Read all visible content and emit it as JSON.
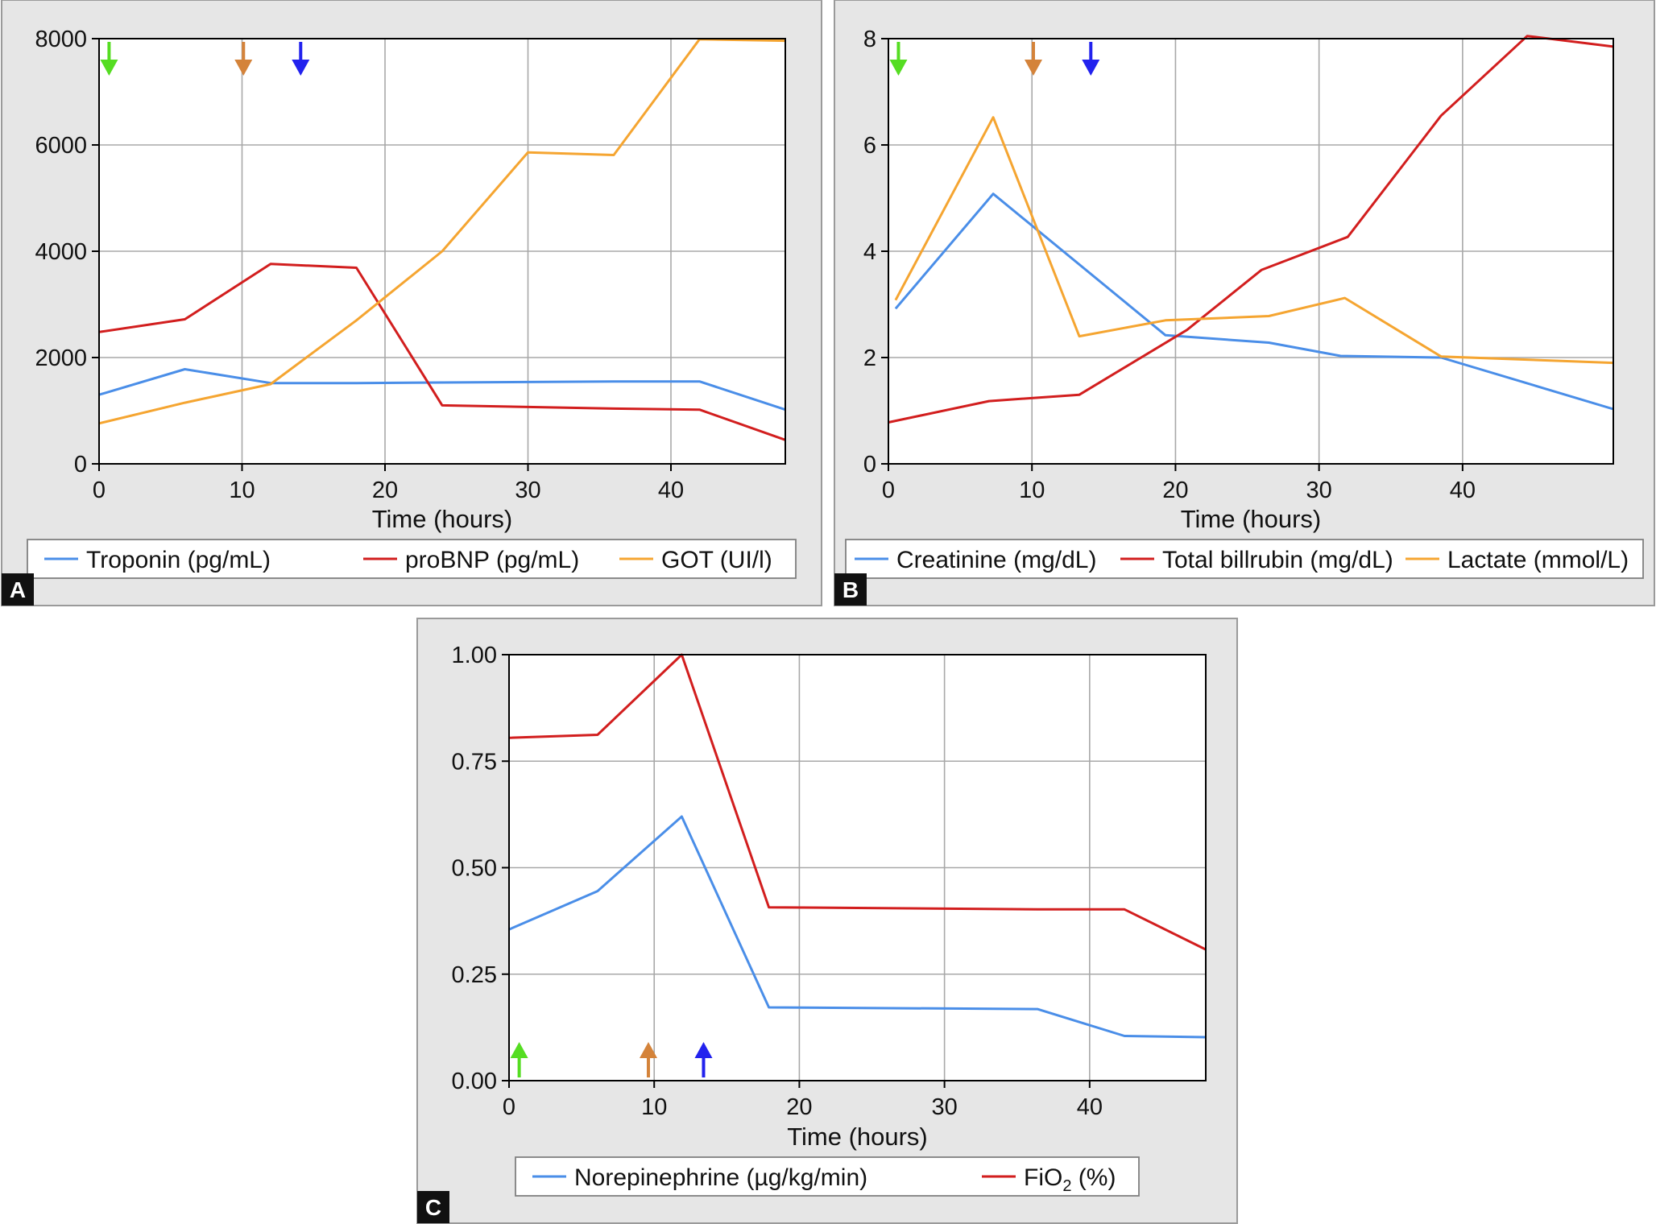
{
  "chart_data": [
    {
      "type": "line",
      "panel_label": "A",
      "xlabel": "Time (hours)",
      "ylabel": "",
      "xlim": [
        0,
        48
      ],
      "ylim": [
        0,
        8000
      ],
      "xticks": [
        0,
        10,
        20,
        30,
        40
      ],
      "xtick_labels": [
        "0",
        "10",
        "20",
        "30",
        "40"
      ],
      "yticks": [
        0,
        2000,
        4000,
        6000,
        8000
      ],
      "ytick_labels": [
        "0",
        "2000",
        "4000",
        "6000",
        "8000"
      ],
      "grid": true,
      "legend_position": "bottom",
      "series": [
        {
          "name": "Troponin (pg/mL)",
          "color": "#4a8ee8",
          "x": [
            0,
            6,
            12,
            18,
            24,
            30,
            36,
            42,
            48
          ],
          "y": [
            1300,
            1780,
            1520,
            1520,
            1530,
            1540,
            1550,
            1550,
            1020
          ]
        },
        {
          "name": "proBNP (pg/mL)",
          "color": "#d21e1e",
          "x": [
            0,
            6,
            12,
            18,
            24,
            30,
            36,
            42,
            48
          ],
          "y": [
            2480,
            2720,
            3760,
            3690,
            1100,
            1070,
            1040,
            1020,
            450
          ]
        },
        {
          "name": "GOT (UI/l)",
          "color": "#f5a531",
          "x": [
            0,
            6,
            12,
            18,
            24,
            30,
            36,
            42,
            48
          ],
          "y": [
            760,
            1150,
            1500,
            2700,
            4000,
            5860,
            5810,
            7990,
            7960
          ]
        }
      ],
      "annotations": [
        {
          "kind": "arrow-down",
          "x": 0.7,
          "color": "#55dd22"
        },
        {
          "kind": "arrow-down",
          "x": 10.1,
          "color": "#d4833a"
        },
        {
          "kind": "arrow-down",
          "x": 14.1,
          "color": "#2222ee"
        }
      ]
    },
    {
      "type": "line",
      "panel_label": "B",
      "xlabel": "Time (hours)",
      "ylabel": "",
      "xlim": [
        0,
        50.5
      ],
      "ylim": [
        0,
        8
      ],
      "xticks": [
        0,
        10,
        20,
        30,
        40
      ],
      "xtick_labels": [
        "0",
        "10",
        "20",
        "30",
        "40"
      ],
      "yticks": [
        0,
        2,
        4,
        6,
        8
      ],
      "ytick_labels": [
        "0",
        "2",
        "4",
        "6",
        "8"
      ],
      "grid": true,
      "legend_position": "bottom",
      "series": [
        {
          "name": "Creatinine (mg/dL)",
          "color": "#4a8ee8",
          "x": [
            0.5,
            7.3,
            19.3,
            26.5,
            31.5,
            38.5,
            50.5
          ],
          "y": [
            2.92,
            5.08,
            2.42,
            2.28,
            2.03,
            2.0,
            1.03
          ]
        },
        {
          "name": "Total billrubin (mg/dL)",
          "color": "#d21e1e",
          "x": [
            0,
            7,
            13.3,
            20.8,
            26,
            32,
            38.5,
            44.5,
            50.5
          ],
          "y": [
            0.78,
            1.18,
            1.3,
            2.52,
            3.65,
            4.27,
            6.55,
            8.05,
            7.85
          ]
        },
        {
          "name": "Lactate (mmol/L)",
          "color": "#f5a531",
          "x": [
            0.5,
            7.3,
            13.3,
            19.3,
            26.5,
            31.8,
            38.5,
            50.5
          ],
          "y": [
            3.08,
            6.52,
            2.4,
            2.7,
            2.78,
            3.12,
            2.02,
            1.9
          ]
        }
      ],
      "annotations": [
        {
          "kind": "arrow-down",
          "x": 0.7,
          "color": "#55dd22"
        },
        {
          "kind": "arrow-down",
          "x": 10.1,
          "color": "#d4833a"
        },
        {
          "kind": "arrow-down",
          "x": 14.1,
          "color": "#2222ee"
        }
      ]
    },
    {
      "type": "line",
      "panel_label": "C",
      "xlabel": "Time (hours)",
      "ylabel": "",
      "xlim": [
        0,
        48
      ],
      "ylim": [
        0,
        1
      ],
      "xticks": [
        0,
        10,
        20,
        30,
        40
      ],
      "xtick_labels": [
        "0",
        "10",
        "20",
        "30",
        "40"
      ],
      "yticks": [
        0,
        0.25,
        0.5,
        0.75,
        1
      ],
      "ytick_labels": [
        "0.00",
        "0.25",
        "0.50",
        "0.75",
        "1.00"
      ],
      "grid": true,
      "legend_position": "bottom",
      "series": [
        {
          "name": "Norepinephrine (µg/kg/min)",
          "color": "#4a8ee8",
          "x": [
            0,
            6.1,
            11.9,
            17.9,
            36.4,
            42.4,
            48
          ],
          "y": [
            0.355,
            0.445,
            0.62,
            0.172,
            0.168,
            0.105,
            0.102
          ]
        },
        {
          "name": "FiO",
          "name_sub": "2",
          "name_suffix": " (%)",
          "color": "#d21e1e",
          "x": [
            0,
            6.1,
            11.9,
            17.9,
            36.4,
            42.4,
            48
          ],
          "y": [
            0.805,
            0.812,
            1.0,
            0.407,
            0.402,
            0.402,
            0.308
          ]
        }
      ],
      "annotations": [
        {
          "kind": "arrow-up",
          "x": 0.7,
          "color": "#55dd22"
        },
        {
          "kind": "arrow-up",
          "x": 9.6,
          "color": "#d4833a"
        },
        {
          "kind": "arrow-up",
          "x": 13.4,
          "color": "#2222ee"
        }
      ]
    }
  ]
}
